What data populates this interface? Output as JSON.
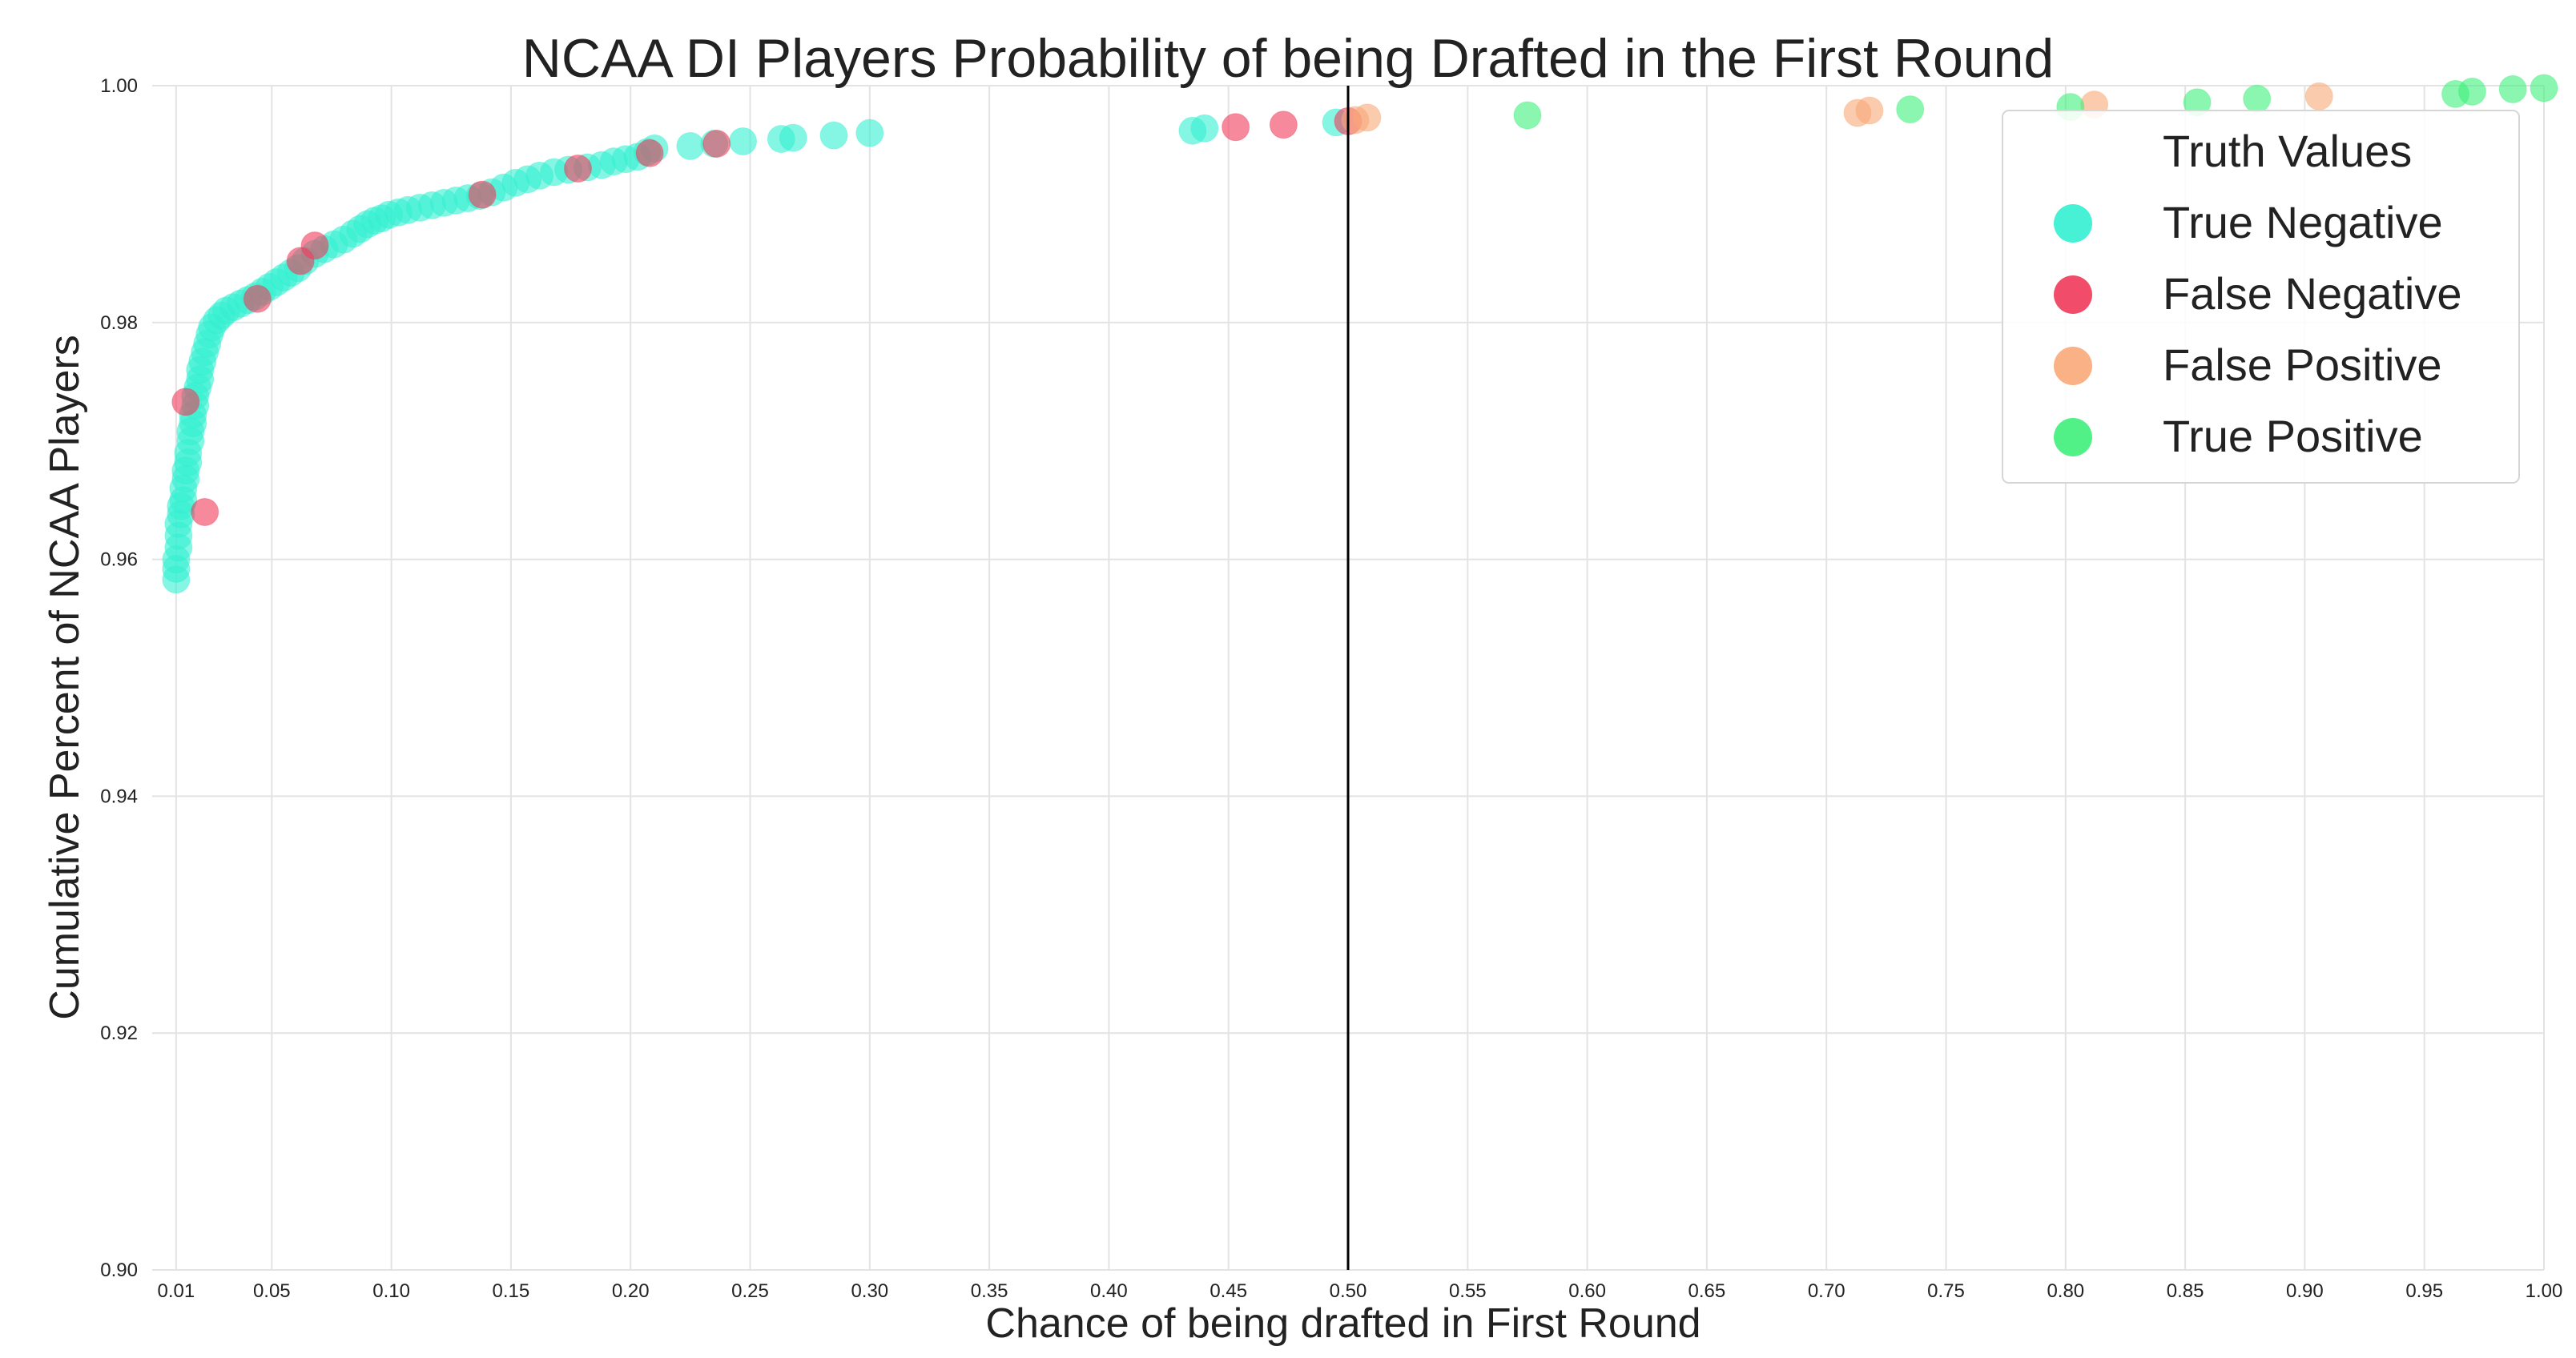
{
  "chart_data": {
    "type": "scatter",
    "title": "NCAA DI Players Probability of being Drafted in the First Round",
    "xlabel": "Chance of being drafted in First Round",
    "ylabel": "Cumulative Percent of NCAA Players",
    "xlim": [
      0.0,
      1.0
    ],
    "ylim": [
      0.9,
      1.0
    ],
    "x_ticks": [
      "0.01",
      "0.05",
      "0.10",
      "0.15",
      "0.20",
      "0.25",
      "0.30",
      "0.35",
      "0.40",
      "0.45",
      "0.50",
      "0.55",
      "0.60",
      "0.65",
      "0.70",
      "0.75",
      "0.80",
      "0.85",
      "0.90",
      "0.95",
      "1.00"
    ],
    "y_ticks": [
      "0.90",
      "0.92",
      "0.94",
      "0.96",
      "0.98",
      "1.00"
    ],
    "grid": true,
    "threshold_line_x": 0.5,
    "legend": {
      "title": "Truth Values",
      "placement": "top-right",
      "entries": [
        "True Negative",
        "False Negative",
        "False Positive",
        "True Positive"
      ]
    },
    "series": [
      {
        "name": "True Negative",
        "color": "#33f0d0",
        "points": [
          [
            0.01,
            0.9583
          ],
          [
            0.01,
            0.9592
          ],
          [
            0.01,
            0.96
          ],
          [
            0.011,
            0.961
          ],
          [
            0.011,
            0.962
          ],
          [
            0.011,
            0.963
          ],
          [
            0.012,
            0.9638
          ],
          [
            0.012,
            0.9645
          ],
          [
            0.013,
            0.965
          ],
          [
            0.013,
            0.966
          ],
          [
            0.014,
            0.9668
          ],
          [
            0.014,
            0.9675
          ],
          [
            0.015,
            0.9682
          ],
          [
            0.015,
            0.969
          ],
          [
            0.016,
            0.97
          ],
          [
            0.016,
            0.9708
          ],
          [
            0.017,
            0.9715
          ],
          [
            0.017,
            0.9722
          ],
          [
            0.018,
            0.973
          ],
          [
            0.018,
            0.9738
          ],
          [
            0.019,
            0.9745
          ],
          [
            0.02,
            0.9752
          ],
          [
            0.02,
            0.976
          ],
          [
            0.021,
            0.9767
          ],
          [
            0.022,
            0.9775
          ],
          [
            0.023,
            0.9782
          ],
          [
            0.024,
            0.979
          ],
          [
            0.025,
            0.9796
          ],
          [
            0.027,
            0.9802
          ],
          [
            0.029,
            0.9806
          ],
          [
            0.031,
            0.981
          ],
          [
            0.034,
            0.9813
          ],
          [
            0.037,
            0.9816
          ],
          [
            0.04,
            0.9819
          ],
          [
            0.043,
            0.9822
          ],
          [
            0.046,
            0.9826
          ],
          [
            0.049,
            0.983
          ],
          [
            0.052,
            0.9834
          ],
          [
            0.055,
            0.9838
          ],
          [
            0.058,
            0.9842
          ],
          [
            0.061,
            0.9846
          ],
          [
            0.064,
            0.9852
          ],
          [
            0.068,
            0.9858
          ],
          [
            0.072,
            0.9862
          ],
          [
            0.076,
            0.9866
          ],
          [
            0.08,
            0.987
          ],
          [
            0.084,
            0.9875
          ],
          [
            0.087,
            0.9879
          ],
          [
            0.09,
            0.9883
          ],
          [
            0.093,
            0.9886
          ],
          [
            0.096,
            0.9888
          ],
          [
            0.099,
            0.9891
          ],
          [
            0.103,
            0.9893
          ],
          [
            0.107,
            0.9895
          ],
          [
            0.112,
            0.9897
          ],
          [
            0.117,
            0.9899
          ],
          [
            0.122,
            0.9901
          ],
          [
            0.127,
            0.9903
          ],
          [
            0.132,
            0.9905
          ],
          [
            0.137,
            0.9907
          ],
          [
            0.142,
            0.991
          ],
          [
            0.147,
            0.9914
          ],
          [
            0.152,
            0.9918
          ],
          [
            0.157,
            0.9921
          ],
          [
            0.162,
            0.9924
          ],
          [
            0.168,
            0.9927
          ],
          [
            0.174,
            0.9929
          ],
          [
            0.182,
            0.9931
          ],
          [
            0.188,
            0.9933
          ],
          [
            0.193,
            0.9936
          ],
          [
            0.198,
            0.9938
          ],
          [
            0.203,
            0.994
          ],
          [
            0.207,
            0.9944
          ],
          [
            0.21,
            0.9947
          ],
          [
            0.225,
            0.9949
          ],
          [
            0.235,
            0.9951
          ],
          [
            0.247,
            0.9953
          ],
          [
            0.263,
            0.9955
          ],
          [
            0.268,
            0.9956
          ],
          [
            0.285,
            0.9958
          ],
          [
            0.3,
            0.996
          ],
          [
            0.435,
            0.9962
          ],
          [
            0.44,
            0.9964
          ],
          [
            0.495,
            0.9969
          ]
        ]
      },
      {
        "name": "False Negative",
        "color": "#f03a5a",
        "points": [
          [
            0.014,
            0.9733
          ],
          [
            0.022,
            0.964
          ],
          [
            0.044,
            0.982
          ],
          [
            0.062,
            0.9852
          ],
          [
            0.068,
            0.9865
          ],
          [
            0.138,
            0.9908
          ],
          [
            0.178,
            0.993
          ],
          [
            0.208,
            0.9943
          ],
          [
            0.236,
            0.9951
          ],
          [
            0.453,
            0.9965
          ],
          [
            0.473,
            0.9967
          ],
          [
            0.5,
            0.997
          ]
        ]
      },
      {
        "name": "False Positive",
        "color": "#f8a878",
        "points": [
          [
            0.503,
            0.9971
          ],
          [
            0.508,
            0.9973
          ],
          [
            0.713,
            0.9977
          ],
          [
            0.718,
            0.9979
          ],
          [
            0.812,
            0.9984
          ],
          [
            0.906,
            0.9991
          ]
        ]
      },
      {
        "name": "True Positive",
        "color": "#3ef07a",
        "points": [
          [
            0.575,
            0.9975
          ],
          [
            0.735,
            0.998
          ],
          [
            0.802,
            0.9982
          ],
          [
            0.855,
            0.9986
          ],
          [
            0.88,
            0.9989
          ],
          [
            0.963,
            0.9993
          ],
          [
            0.97,
            0.9995
          ],
          [
            0.987,
            0.9997
          ],
          [
            1.0,
            0.9998
          ]
        ]
      }
    ]
  }
}
